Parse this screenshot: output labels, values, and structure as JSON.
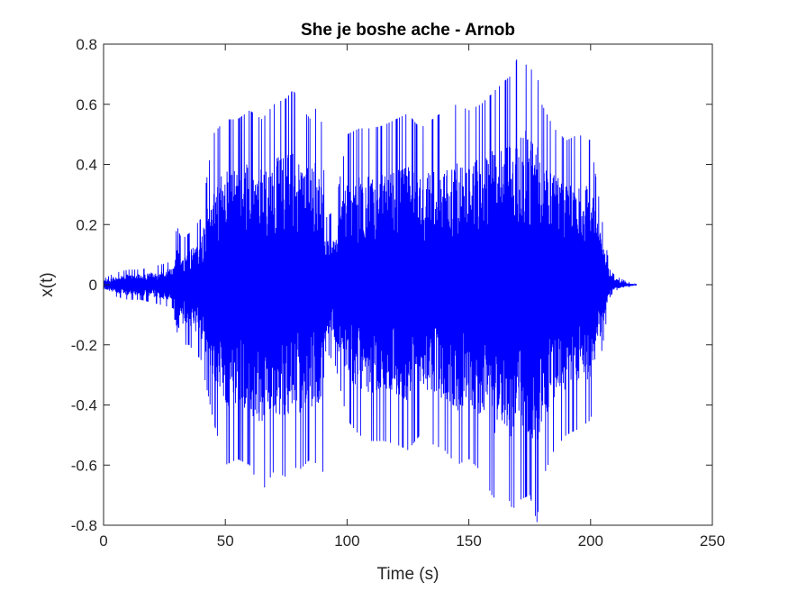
{
  "chart_data": {
    "type": "line",
    "title": "She je boshe ache - Arnob",
    "xlabel": "Time (s)",
    "ylabel": "x(t)",
    "xlim": [
      0,
      250
    ],
    "ylim": [
      -0.8,
      0.8
    ],
    "xticks": [
      0,
      50,
      100,
      150,
      200,
      250
    ],
    "yticks": [
      -0.8,
      -0.6,
      -0.4,
      -0.2,
      0,
      0.2,
      0.4,
      0.6,
      0.8
    ],
    "xtick_labels": [
      "0",
      "50",
      "100",
      "150",
      "200",
      "250"
    ],
    "ytick_labels": [
      "-0.8",
      "-0.6",
      "-0.4",
      "-0.2",
      "0",
      "0.2",
      "0.4",
      "0.6",
      "0.8"
    ],
    "grid": false,
    "line_color": "#0000ff",
    "series": [
      {
        "envelope_time_s": [
          0,
          5,
          10,
          15,
          20,
          25,
          29,
          30,
          32,
          35,
          40,
          45,
          50,
          55,
          60,
          65,
          70,
          75,
          78,
          80,
          85,
          88,
          90,
          91,
          95,
          100,
          105,
          110,
          115,
          120,
          125,
          130,
          135,
          140,
          145,
          150,
          155,
          160,
          165,
          168,
          170,
          175,
          178,
          180,
          185,
          190,
          195,
          200,
          205,
          208,
          210,
          215,
          219
        ],
        "envelope_upper": [
          0.02,
          0.04,
          0.05,
          0.05,
          0.06,
          0.07,
          0.08,
          0.2,
          0.15,
          0.17,
          0.22,
          0.5,
          0.55,
          0.55,
          0.58,
          0.55,
          0.6,
          0.62,
          0.65,
          0.6,
          0.55,
          0.6,
          0.52,
          0.22,
          0.25,
          0.5,
          0.52,
          0.52,
          0.53,
          0.55,
          0.57,
          0.52,
          0.55,
          0.58,
          0.6,
          0.58,
          0.6,
          0.64,
          0.68,
          0.7,
          0.76,
          0.72,
          0.7,
          0.6,
          0.52,
          0.48,
          0.5,
          0.48,
          0.2,
          0.05,
          0.03,
          0.01,
          0.0
        ],
        "envelope_lower": [
          -0.02,
          -0.04,
          -0.05,
          -0.05,
          -0.06,
          -0.07,
          -0.08,
          -0.24,
          -0.2,
          -0.2,
          -0.25,
          -0.45,
          -0.6,
          -0.58,
          -0.6,
          -0.69,
          -0.62,
          -0.64,
          -0.6,
          -0.62,
          -0.58,
          -0.6,
          -0.64,
          -0.22,
          -0.26,
          -0.45,
          -0.5,
          -0.52,
          -0.52,
          -0.53,
          -0.55,
          -0.5,
          -0.53,
          -0.55,
          -0.6,
          -0.58,
          -0.62,
          -0.71,
          -0.68,
          -0.75,
          -0.72,
          -0.7,
          -0.79,
          -0.65,
          -0.55,
          -0.5,
          -0.48,
          -0.45,
          -0.2,
          -0.04,
          -0.02,
          -0.01,
          0.0
        ]
      }
    ]
  }
}
